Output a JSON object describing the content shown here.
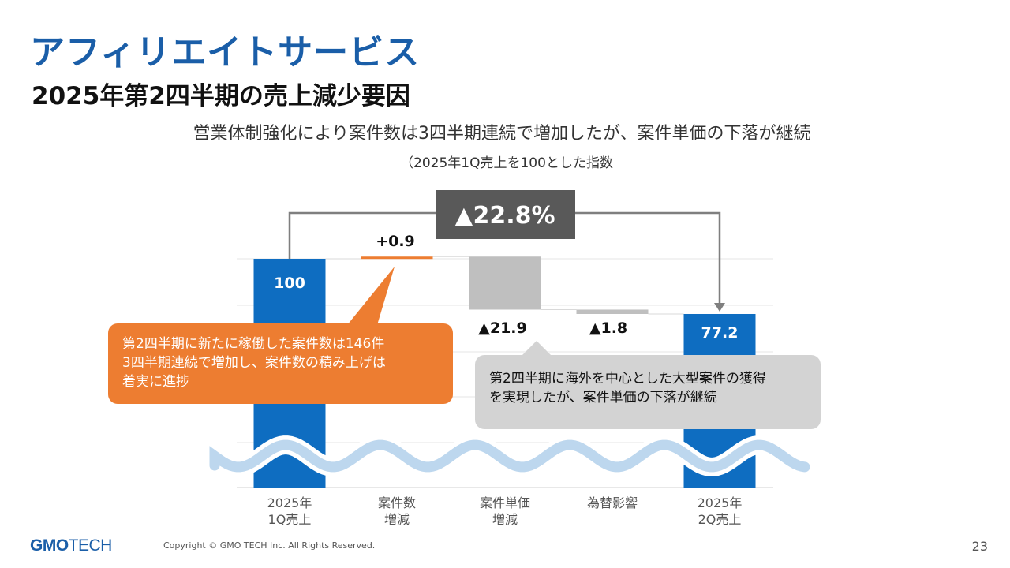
{
  "slide": {
    "title": "アフィリエイトサービス",
    "subtitle": "2025年第2四半期の売上減少要因",
    "headline": "営業体制強化により案件数は3四半期連続で増加したが、案件単価の下落が継続",
    "note": "（2025年1Q売上を100とした指数",
    "change_badge": "▲22.8%",
    "callout_left": [
      "第2四半期に新たに稼働した案件数は146件",
      "3四半期連続で増加し、案件数の積み上げは",
      "着実に進捗"
    ],
    "callout_right": [
      "第2四半期に海外を中心とした大型案件の獲得",
      "を実現したが、案件単価の下落が継続"
    ],
    "footer": {
      "logo_main": "GMO",
      "logo_sub": "TECH",
      "copyright": "Copyright © GMO TECH Inc. All Rights Reserved.",
      "page": "23"
    }
  },
  "colors": {
    "title": "#1a5ea8",
    "total_bar": "#0e6dc1",
    "increase_bar": "#ed7d31",
    "decrease_bar": "#bfbfbf",
    "badge": "#595959",
    "connector": "#7f7f7f",
    "wave": "#bdd7ee"
  },
  "chart_data": {
    "type": "waterfall",
    "categories": [
      "2025年\n1Q売上",
      "案件数\n増減",
      "案件単価\n増減",
      "為替影響",
      "2025年\n2Q売上"
    ],
    "values": [
      100,
      0.9,
      -21.9,
      -1.8,
      77.2
    ],
    "kinds": [
      "total",
      "delta",
      "delta",
      "delta",
      "total"
    ],
    "data_labels": [
      "100",
      "+0.9",
      "▲21.9",
      "▲1.8",
      "77.2"
    ],
    "axis_break": true,
    "gridlines": true
  }
}
